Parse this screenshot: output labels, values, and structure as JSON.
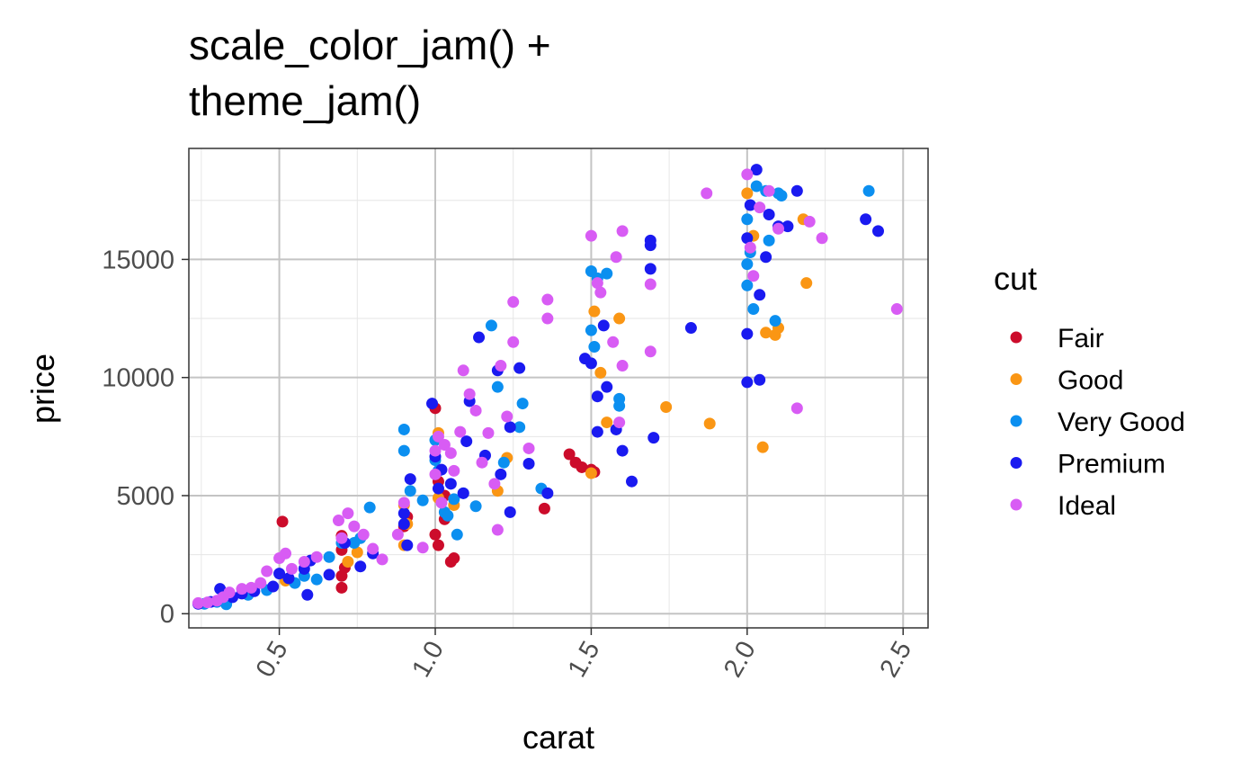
{
  "chart_data": {
    "type": "scatter",
    "title": [
      "scale_color_jam() +",
      "theme_jam()"
    ],
    "xlabel": "carat",
    "ylabel": "price",
    "xlim": [
      0.21,
      2.58
    ],
    "ylim": [
      -600,
      19700
    ],
    "x_ticks": [
      "0.5",
      "1.0",
      "1.5",
      "2.0",
      "2.5"
    ],
    "y_ticks": [
      "0",
      "5000",
      "10000",
      "15000"
    ],
    "grid": true,
    "legend": {
      "title": "cut",
      "position": "right"
    },
    "series": [
      {
        "name": "Fair",
        "color": "#cc0c2b",
        "points": [
          [
            0.51,
            3900
          ],
          [
            0.7,
            3300
          ],
          [
            0.7,
            2700
          ],
          [
            0.7,
            1100
          ],
          [
            0.7,
            1600
          ],
          [
            0.71,
            1950
          ],
          [
            1.0,
            8700
          ],
          [
            1.01,
            5600
          ],
          [
            1.03,
            5000
          ],
          [
            1.05,
            2200
          ],
          [
            1.06,
            2350
          ],
          [
            1.35,
            4450
          ],
          [
            1.43,
            6750
          ],
          [
            1.45,
            6400
          ],
          [
            1.47,
            6200
          ],
          [
            1.5,
            6100
          ],
          [
            1.51,
            6000
          ],
          [
            1.03,
            4000
          ],
          [
            0.9,
            3700
          ],
          [
            1.0,
            3350
          ],
          [
            0.91,
            4100
          ],
          [
            1.01,
            2900
          ]
        ]
      },
      {
        "name": "Good",
        "color": "#fa9614",
        "points": [
          [
            1.51,
            12800
          ],
          [
            1.53,
            10200
          ],
          [
            1.55,
            8100
          ],
          [
            1.59,
            12500
          ],
          [
            1.74,
            8750
          ],
          [
            1.88,
            8050
          ],
          [
            2.0,
            17800
          ],
          [
            2.02,
            16000
          ],
          [
            2.05,
            7050
          ],
          [
            2.06,
            11900
          ],
          [
            2.09,
            11800
          ],
          [
            2.1,
            12100
          ],
          [
            2.18,
            16700
          ],
          [
            2.19,
            14000
          ],
          [
            1.01,
            7650
          ],
          [
            1.01,
            4900
          ],
          [
            1.06,
            4600
          ],
          [
            1.2,
            5200
          ],
          [
            1.23,
            6600
          ],
          [
            0.9,
            2900
          ],
          [
            0.91,
            3800
          ],
          [
            0.72,
            2200
          ],
          [
            0.75,
            2600
          ],
          [
            0.52,
            1400
          ],
          [
            0.9,
            4600
          ],
          [
            1.5,
            5950
          ]
        ]
      },
      {
        "name": "Very Good",
        "color": "#0b8ff0",
        "points": [
          [
            0.26,
            420
          ],
          [
            0.3,
            500
          ],
          [
            0.33,
            650
          ],
          [
            0.4,
            800
          ],
          [
            0.46,
            1000
          ],
          [
            0.55,
            1300
          ],
          [
            0.58,
            1600
          ],
          [
            0.62,
            1450
          ],
          [
            0.66,
            2400
          ],
          [
            0.7,
            3000
          ],
          [
            0.74,
            3000
          ],
          [
            0.76,
            3200
          ],
          [
            0.79,
            4500
          ],
          [
            0.9,
            7800
          ],
          [
            0.9,
            6900
          ],
          [
            0.92,
            5200
          ],
          [
            0.96,
            4800
          ],
          [
            1.0,
            7350
          ],
          [
            1.0,
            6500
          ],
          [
            1.01,
            6050
          ],
          [
            1.03,
            4300
          ],
          [
            1.04,
            4150
          ],
          [
            1.06,
            4850
          ],
          [
            1.07,
            3350
          ],
          [
            1.09,
            5100
          ],
          [
            1.13,
            4550
          ],
          [
            1.18,
            12200
          ],
          [
            1.2,
            9600
          ],
          [
            1.22,
            6400
          ],
          [
            1.27,
            7900
          ],
          [
            1.28,
            8900
          ],
          [
            1.34,
            5300
          ],
          [
            1.5,
            14500
          ],
          [
            1.5,
            12000
          ],
          [
            1.52,
            14200
          ],
          [
            1.55,
            14400
          ],
          [
            1.51,
            11300
          ],
          [
            1.59,
            8800
          ],
          [
            1.59,
            9100
          ],
          [
            2.0,
            16700
          ],
          [
            2.0,
            14800
          ],
          [
            2.0,
            13900
          ],
          [
            2.01,
            15300
          ],
          [
            2.03,
            18100
          ],
          [
            2.06,
            17900
          ],
          [
            2.1,
            17800
          ],
          [
            2.11,
            17700
          ],
          [
            2.09,
            12400
          ],
          [
            2.02,
            12900
          ],
          [
            2.07,
            15800
          ],
          [
            2.39,
            17900
          ],
          [
            0.33,
            400
          ]
        ]
      },
      {
        "name": "Premium",
        "color": "#1a1af0",
        "points": [
          [
            0.24,
            420
          ],
          [
            0.28,
            500
          ],
          [
            0.31,
            1050
          ],
          [
            0.35,
            700
          ],
          [
            0.38,
            850
          ],
          [
            0.42,
            950
          ],
          [
            0.48,
            1150
          ],
          [
            0.5,
            1700
          ],
          [
            0.53,
            1500
          ],
          [
            0.58,
            1900
          ],
          [
            0.59,
            800
          ],
          [
            0.6,
            2250
          ],
          [
            0.66,
            1650
          ],
          [
            0.71,
            3000
          ],
          [
            0.76,
            2000
          ],
          [
            0.8,
            2550
          ],
          [
            0.9,
            4250
          ],
          [
            0.9,
            3800
          ],
          [
            0.91,
            2900
          ],
          [
            0.92,
            5700
          ],
          [
            0.99,
            8900
          ],
          [
            1.0,
            6650
          ],
          [
            1.01,
            5300
          ],
          [
            1.02,
            6100
          ],
          [
            1.05,
            5500
          ],
          [
            1.09,
            5100
          ],
          [
            1.1,
            7300
          ],
          [
            1.11,
            9000
          ],
          [
            1.14,
            11700
          ],
          [
            1.16,
            6700
          ],
          [
            1.2,
            10300
          ],
          [
            1.21,
            5900
          ],
          [
            1.24,
            7900
          ],
          [
            1.24,
            4300
          ],
          [
            1.27,
            10400
          ],
          [
            1.3,
            6350
          ],
          [
            1.36,
            5100
          ],
          [
            1.5,
            10600
          ],
          [
            1.52,
            9200
          ],
          [
            1.52,
            7700
          ],
          [
            1.54,
            12200
          ],
          [
            1.55,
            9600
          ],
          [
            1.58,
            7800
          ],
          [
            1.6,
            6900
          ],
          [
            1.63,
            5600
          ],
          [
            1.69,
            15800
          ],
          [
            1.69,
            15600
          ],
          [
            1.69,
            14600
          ],
          [
            1.7,
            7450
          ],
          [
            1.82,
            12100
          ],
          [
            2.0,
            11850
          ],
          [
            2.0,
            9800
          ],
          [
            2.0,
            15900
          ],
          [
            2.01,
            17300
          ],
          [
            2.03,
            18800
          ],
          [
            2.04,
            13500
          ],
          [
            2.04,
            9900
          ],
          [
            2.06,
            15100
          ],
          [
            2.07,
            16900
          ],
          [
            2.1,
            16400
          ],
          [
            2.13,
            16400
          ],
          [
            2.16,
            17900
          ],
          [
            2.38,
            16700
          ],
          [
            2.42,
            16200
          ],
          [
            1.48,
            10800
          ]
        ]
      },
      {
        "name": "Ideal",
        "color": "#d85cf4",
        "points": [
          [
            0.24,
            450
          ],
          [
            0.27,
            480
          ],
          [
            0.3,
            550
          ],
          [
            0.32,
            700
          ],
          [
            0.34,
            900
          ],
          [
            0.38,
            1050
          ],
          [
            0.41,
            1100
          ],
          [
            0.44,
            1300
          ],
          [
            0.46,
            1800
          ],
          [
            0.5,
            2350
          ],
          [
            0.52,
            2550
          ],
          [
            0.54,
            1900
          ],
          [
            0.58,
            2200
          ],
          [
            0.62,
            2400
          ],
          [
            0.69,
            3950
          ],
          [
            0.7,
            3200
          ],
          [
            0.72,
            4250
          ],
          [
            0.74,
            3700
          ],
          [
            0.77,
            3350
          ],
          [
            0.8,
            2750
          ],
          [
            0.88,
            3350
          ],
          [
            0.9,
            4700
          ],
          [
            0.96,
            2800
          ],
          [
            1.0,
            5900
          ],
          [
            1.01,
            7500
          ],
          [
            1.03,
            7150
          ],
          [
            1.05,
            6800
          ],
          [
            1.06,
            6050
          ],
          [
            1.08,
            7700
          ],
          [
            1.09,
            10300
          ],
          [
            1.11,
            9300
          ],
          [
            1.13,
            8600
          ],
          [
            1.15,
            6400
          ],
          [
            1.17,
            7650
          ],
          [
            1.19,
            5500
          ],
          [
            1.2,
            3550
          ],
          [
            1.21,
            10500
          ],
          [
            1.23,
            8350
          ],
          [
            1.25,
            13200
          ],
          [
            1.25,
            11500
          ],
          [
            1.3,
            7000
          ],
          [
            1.36,
            13300
          ],
          [
            1.36,
            12500
          ],
          [
            1.5,
            16000
          ],
          [
            1.52,
            14000
          ],
          [
            1.53,
            13600
          ],
          [
            1.58,
            15100
          ],
          [
            1.57,
            11500
          ],
          [
            1.6,
            16200
          ],
          [
            1.6,
            10500
          ],
          [
            1.59,
            8100
          ],
          [
            1.69,
            13950
          ],
          [
            1.69,
            11100
          ],
          [
            1.87,
            17800
          ],
          [
            2.0,
            18600
          ],
          [
            2.01,
            15500
          ],
          [
            2.02,
            14300
          ],
          [
            2.04,
            17200
          ],
          [
            2.07,
            17900
          ],
          [
            2.1,
            16300
          ],
          [
            2.16,
            8700
          ],
          [
            2.2,
            16600
          ],
          [
            2.24,
            15900
          ],
          [
            2.48,
            12900
          ],
          [
            1.0,
            6900
          ],
          [
            1.02,
            4700
          ],
          [
            0.83,
            2300
          ]
        ]
      }
    ]
  }
}
